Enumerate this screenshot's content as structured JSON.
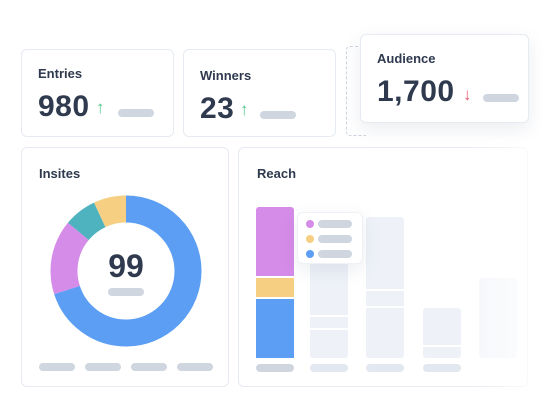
{
  "stats": {
    "entries": {
      "label": "Entries",
      "value": "980",
      "trend": "up"
    },
    "winners": {
      "label": "Winners",
      "value": "23",
      "trend": "up"
    },
    "audience": {
      "label": "Audience",
      "value": "1,700",
      "trend": "down"
    }
  },
  "insites": {
    "title": "Insites",
    "center_value": "99",
    "chart_data": {
      "type": "pie",
      "style": "donut",
      "slices": [
        {
          "color": "#5b9ef3",
          "fraction": 0.7
        },
        {
          "color": "#d58be8",
          "fraction": 0.16
        },
        {
          "color": "#4fb3bf",
          "fraction": 0.07
        },
        {
          "color": "#f7cf82",
          "fraction": 0.07
        }
      ]
    }
  },
  "reach": {
    "title": "Reach",
    "chart_data": {
      "type": "bar",
      "stacked": true,
      "highlighted_bar": {
        "segments": [
          {
            "color": "#d58be8",
            "fraction": 0.47
          },
          {
            "color": "#f7cf82",
            "fraction": 0.14
          },
          {
            "color": "#5b9ef3",
            "fraction": 0.39
          }
        ]
      },
      "legend_colors": [
        "#d58be8",
        "#f7cf82",
        "#5b9ef3"
      ]
    }
  },
  "colors": {
    "up": "#4cc98a",
    "down": "#ee5a6f",
    "text": "#2f3a4f",
    "placeholder": "#cfd6e0"
  },
  "icons": {
    "up": "↑",
    "down": "↓"
  }
}
